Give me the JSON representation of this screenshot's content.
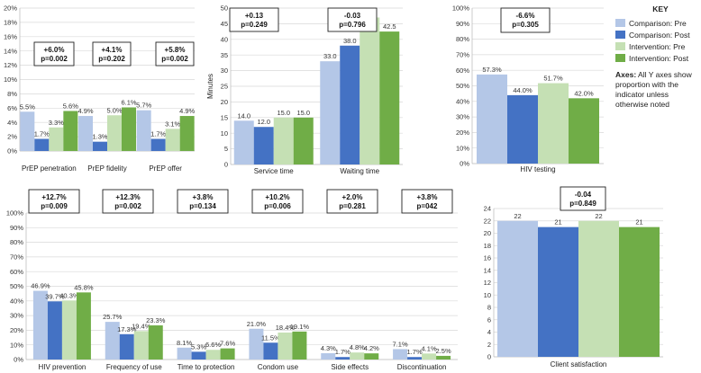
{
  "colors": {
    "comparison_pre": "#b4c7e7",
    "comparison_post": "#4472c4",
    "intervention_pre": "#c5e0b4",
    "intervention_post": "#70ad47",
    "grid": "#d9d9d9",
    "axis": "#bfbfbf"
  },
  "key": {
    "title": "KEY",
    "entries": [
      "Comparison: Pre",
      "Comparison: Post",
      "Intervention: Pre",
      "Intervention: Post"
    ],
    "note_bold": "Axes:",
    "note_lines": [
      " All Y axes show",
      "proportion with the",
      "indicator unless",
      "otherwise noted"
    ]
  },
  "chart_data": [
    {
      "id": "prep",
      "type": "bar",
      "ylabel": "",
      "ylim": [
        0,
        20
      ],
      "yticks": [
        "0%",
        "2%",
        "4%",
        "6%",
        "8%",
        "10%",
        "12%",
        "14%",
        "16%",
        "18%",
        "20%"
      ],
      "categories": [
        "PrEP penetration",
        "PrEP fidelity",
        "PrEP offer"
      ],
      "series": [
        {
          "name": "Comparison: Pre",
          "values": [
            5.5,
            4.9,
            5.7
          ],
          "labels": [
            "5.5%",
            "4.9%",
            "5.7%"
          ]
        },
        {
          "name": "Comparison: Post",
          "values": [
            1.7,
            1.3,
            1.7
          ],
          "labels": [
            "1.7%",
            "1.3%",
            "1.7%"
          ]
        },
        {
          "name": "Intervention: Pre",
          "values": [
            3.3,
            5.0,
            3.1
          ],
          "labels": [
            "3.3%",
            "5.0%",
            "3.1%"
          ]
        },
        {
          "name": "Intervention: Post",
          "values": [
            5.6,
            6.1,
            4.9
          ],
          "labels": [
            "5.6%",
            "6.1%",
            "4.9%"
          ]
        }
      ],
      "annotations": [
        {
          "effect": "+6.0%",
          "p": "p=0.002"
        },
        {
          "effect": "+4.1%",
          "p": "p=0.202"
        },
        {
          "effect": "+5.8%",
          "p": "p=0.002"
        }
      ]
    },
    {
      "id": "time",
      "type": "bar",
      "ylabel": "Minutes",
      "ylim": [
        0,
        50
      ],
      "yticks": [
        "0",
        "5",
        "10",
        "15",
        "20",
        "25",
        "30",
        "35",
        "40",
        "45",
        "50"
      ],
      "categories": [
        "Service time",
        "Waiting time"
      ],
      "series": [
        {
          "name": "Comparison: Pre",
          "values": [
            14.0,
            33.0
          ],
          "labels": [
            "14.0",
            "33.0"
          ]
        },
        {
          "name": "Comparison: Post",
          "values": [
            12.0,
            38.0
          ],
          "labels": [
            "12.0",
            "38.0"
          ]
        },
        {
          "name": "Intervention: Pre",
          "values": [
            15.0,
            47.0
          ],
          "labels": [
            "15.0",
            "47.0"
          ]
        },
        {
          "name": "Intervention: Post",
          "values": [
            15.0,
            42.5
          ],
          "labels": [
            "15.0",
            "42.5"
          ]
        }
      ],
      "annotations": [
        {
          "effect": "+0.13",
          "p": "p=0.249"
        },
        {
          "effect": "-0.03",
          "p": "p=0.796"
        }
      ]
    },
    {
      "id": "hiv_testing",
      "type": "bar",
      "ylabel": "",
      "ylim": [
        0,
        100
      ],
      "yticks": [
        "0%",
        "10%",
        "20%",
        "30%",
        "40%",
        "50%",
        "60%",
        "70%",
        "80%",
        "90%",
        "100%"
      ],
      "categories": [
        "HIV testing"
      ],
      "series": [
        {
          "name": "Comparison: Pre",
          "values": [
            57.3
          ],
          "labels": [
            "57.3%"
          ]
        },
        {
          "name": "Comparison: Post",
          "values": [
            44.0
          ],
          "labels": [
            "44.0%"
          ]
        },
        {
          "name": "Intervention: Pre",
          "values": [
            51.7
          ],
          "labels": [
            "51.7%"
          ]
        },
        {
          "name": "Intervention: Post",
          "values": [
            42.0
          ],
          "labels": [
            "42.0%"
          ]
        }
      ],
      "annotations": [
        {
          "effect": "-6.6%",
          "p": "p=0.305"
        }
      ]
    },
    {
      "id": "knowledge",
      "type": "bar",
      "ylabel": "",
      "ylim": [
        0,
        100
      ],
      "yticks": [
        "0%",
        "10%",
        "20%",
        "30%",
        "40%",
        "50%",
        "60%",
        "70%",
        "80%",
        "90%",
        "100%"
      ],
      "categories": [
        "HIV prevention",
        "Frequency of use",
        "Time to protection",
        "Condom use",
        "Side effects",
        "Discontinuation"
      ],
      "series": [
        {
          "name": "Comparison: Pre",
          "values": [
            46.9,
            25.7,
            8.1,
            21.0,
            4.3,
            7.1
          ],
          "labels": [
            "46.9%",
            "25.7%",
            "8.1%",
            "21.0%",
            "4.3%",
            "7.1%"
          ]
        },
        {
          "name": "Comparison: Post",
          "values": [
            39.7,
            17.3,
            5.3,
            11.5,
            1.7,
            1.7
          ],
          "labels": [
            "39.7%",
            "17.3%",
            "5.3%",
            "11.5%",
            "1.7%",
            "1.7%"
          ]
        },
        {
          "name": "Intervention: Pre",
          "values": [
            40.3,
            19.4,
            6.6,
            18.4,
            4.8,
            4.1
          ],
          "labels": [
            "40.3%",
            "19.4%",
            "6.6%",
            "18.4%",
            "4.8%",
            "4.1%"
          ]
        },
        {
          "name": "Intervention: Post",
          "values": [
            45.8,
            23.3,
            7.6,
            19.1,
            4.2,
            2.5
          ],
          "labels": [
            "45.8%",
            "23.3%",
            "7.6%",
            "19.1%",
            "4.2%",
            "2.5%"
          ]
        }
      ],
      "annotations": [
        {
          "effect": "+12.7%",
          "p": "p=0.009"
        },
        {
          "effect": "+12.3%",
          "p": "p=0.002"
        },
        {
          "effect": "+3.8%",
          "p": "p=0.134"
        },
        {
          "effect": "+10.2%",
          "p": "p=0.006"
        },
        {
          "effect": "+2.0%",
          "p": "p=0.281"
        },
        {
          "effect": "+3.8%",
          "p": "p=042"
        }
      ]
    },
    {
      "id": "satisfaction",
      "type": "bar",
      "ylabel": "",
      "ylim": [
        0,
        24
      ],
      "yticks": [
        "0",
        "2",
        "4",
        "6",
        "8",
        "10",
        "12",
        "14",
        "16",
        "18",
        "20",
        "22",
        "24"
      ],
      "categories": [
        "Client satisfaction"
      ],
      "series": [
        {
          "name": "Comparison: Pre",
          "values": [
            22
          ],
          "labels": [
            "22"
          ]
        },
        {
          "name": "Comparison: Post",
          "values": [
            21
          ],
          "labels": [
            "21"
          ]
        },
        {
          "name": "Intervention: Pre",
          "values": [
            22
          ],
          "labels": [
            "22"
          ]
        },
        {
          "name": "Intervention: Post",
          "values": [
            21
          ],
          "labels": [
            "21"
          ]
        }
      ],
      "annotations": [
        {
          "effect": "-0.04",
          "p": "p=0.849"
        }
      ]
    }
  ]
}
